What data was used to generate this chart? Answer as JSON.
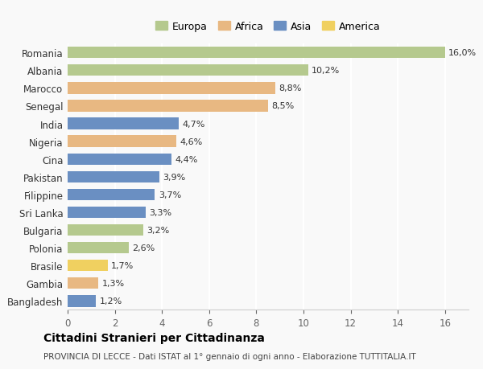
{
  "categories": [
    "Romania",
    "Albania",
    "Marocco",
    "Senegal",
    "India",
    "Nigeria",
    "Cina",
    "Pakistan",
    "Filippine",
    "Sri Lanka",
    "Bulgaria",
    "Polonia",
    "Brasile",
    "Gambia",
    "Bangladesh"
  ],
  "values": [
    16.0,
    10.2,
    8.8,
    8.5,
    4.7,
    4.6,
    4.4,
    3.9,
    3.7,
    3.3,
    3.2,
    2.6,
    1.7,
    1.3,
    1.2
  ],
  "colors": [
    "#b5c98e",
    "#b5c98e",
    "#e8b882",
    "#e8b882",
    "#6a8fc2",
    "#e8b882",
    "#6a8fc2",
    "#6a8fc2",
    "#6a8fc2",
    "#6a8fc2",
    "#b5c98e",
    "#b5c98e",
    "#f0d060",
    "#e8b882",
    "#6a8fc2"
  ],
  "legend_labels": [
    "Europa",
    "Africa",
    "Asia",
    "America"
  ],
  "legend_colors": [
    "#b5c98e",
    "#e8b882",
    "#6a8fc2",
    "#f0d060"
  ],
  "title": "Cittadini Stranieri per Cittadinanza",
  "subtitle": "PROVINCIA DI LECCE - Dati ISTAT al 1° gennaio di ogni anno - Elaborazione TUTTITALIA.IT",
  "xlim": [
    0,
    17
  ],
  "xticks": [
    0,
    2,
    4,
    6,
    8,
    10,
    12,
    14,
    16
  ],
  "background_color": "#f9f9f9",
  "grid_color": "#ffffff",
  "bar_height": 0.65,
  "label_fontsize": 8,
  "tick_fontsize": 8.5,
  "legend_fontsize": 9,
  "title_fontsize": 10,
  "subtitle_fontsize": 7.5
}
